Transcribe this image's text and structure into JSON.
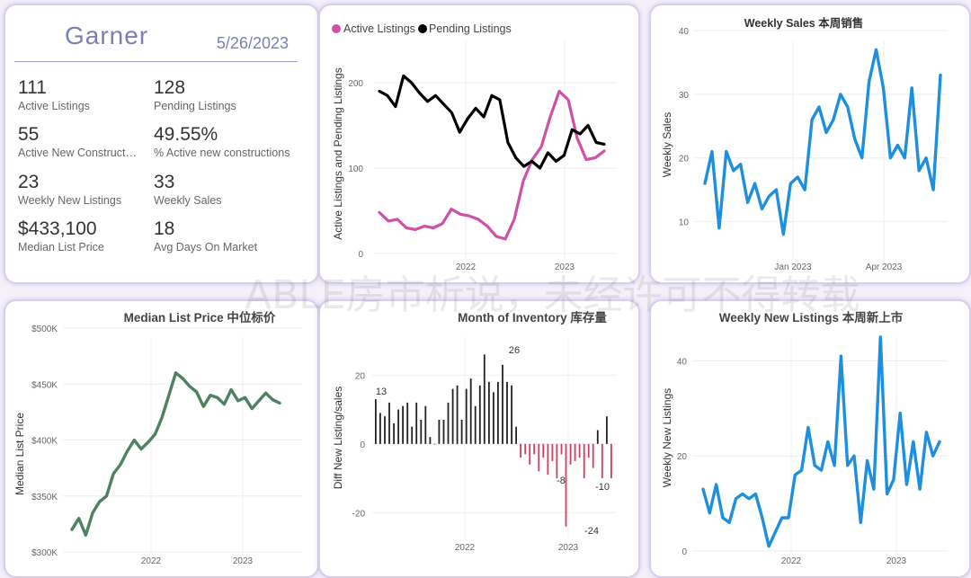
{
  "kpi_card": {
    "city": "Garner",
    "date": "5/26/2023",
    "items": [
      {
        "value": "111",
        "label": "Active Listings"
      },
      {
        "value": "128",
        "label": "Pending Listings"
      },
      {
        "value": "55",
        "label": "Active New Constructi..."
      },
      {
        "value": "49.55%",
        "label": "% Active new constructions"
      },
      {
        "value": "23",
        "label": "Weekly New Listings"
      },
      {
        "value": "33",
        "label": "Weekly Sales"
      },
      {
        "value": "$433,100",
        "label": "Median List Price"
      },
      {
        "value": "18",
        "label": "Avg Days On Market"
      }
    ]
  },
  "watermark": "ABLE房市析说，未经许可不得转载",
  "chart_data": [
    {
      "id": "listings",
      "type": "line",
      "title": "",
      "ylabel": "Active Listings and Pending Listings",
      "xlabel": "",
      "ylim": [
        0,
        240
      ],
      "yticks": [
        0,
        100,
        200
      ],
      "x_ticks": [
        "2022",
        "2023"
      ],
      "legend_position": "top-left",
      "colors": {
        "Active Listings": "#d04fa7",
        "Pending Listings": "#000000"
      },
      "series": [
        {
          "name": "Active Listings",
          "values": [
            48,
            38,
            40,
            30,
            28,
            32,
            30,
            35,
            52,
            46,
            44,
            40,
            32,
            20,
            17,
            40,
            85,
            110,
            125,
            160,
            190,
            180,
            135,
            110,
            112,
            120
          ]
        },
        {
          "name": "Pending Listings",
          "values": [
            190,
            185,
            172,
            208,
            200,
            188,
            178,
            185,
            175,
            165,
            142,
            158,
            170,
            160,
            185,
            180,
            130,
            112,
            102,
            108,
            100,
            118,
            108,
            115,
            145,
            140,
            150,
            130,
            128
          ]
        }
      ]
    },
    {
      "id": "weekly_sales",
      "type": "line",
      "title": "Weekly Sales 本周销售",
      "ylabel": "Weekly Sales",
      "xlabel": "",
      "ylim": [
        5,
        40
      ],
      "yticks": [
        10,
        20,
        30,
        40
      ],
      "x_ticks": [
        "Jan 2023",
        "Apr 2023"
      ],
      "colors": {
        "line": "#1e8fdf"
      },
      "series": [
        {
          "name": "",
          "values": [
            16,
            21,
            9,
            21,
            18,
            19,
            13,
            16,
            12,
            14,
            15,
            8,
            16,
            17,
            15,
            26,
            28,
            24,
            26,
            30,
            28,
            23,
            20,
            32,
            37,
            31,
            20,
            22,
            20,
            31,
            18,
            20,
            15,
            33
          ]
        }
      ]
    },
    {
      "id": "median_price",
      "type": "line",
      "title": "Median List Price  中位标价",
      "ylabel": "Median List Price",
      "xlabel": "",
      "ylim": [
        300000,
        500000
      ],
      "yticks": [
        "$300K",
        "$350K",
        "$400K",
        "$450K",
        "$500K"
      ],
      "x_ticks": [
        "2022",
        "2023"
      ],
      "colors": {
        "line": "#4e8062"
      },
      "series": [
        {
          "name": "",
          "values": [
            320000,
            330000,
            315000,
            335000,
            345000,
            350000,
            370000,
            378000,
            390000,
            400000,
            392000,
            398000,
            405000,
            420000,
            440000,
            460000,
            455000,
            448000,
            443000,
            430000,
            440000,
            438000,
            432000,
            445000,
            435000,
            438000,
            428000,
            435000,
            442000,
            436000,
            433000
          ]
        }
      ]
    },
    {
      "id": "inventory",
      "type": "bar",
      "title": "Month of Inventory 库存量",
      "ylabel": "Diff New Listing/sales",
      "xlabel": "",
      "ylim": [
        -28,
        30
      ],
      "yticks": [
        -20,
        0,
        20
      ],
      "x_ticks": [
        "2022",
        "2023"
      ],
      "annotations": [
        "13",
        "26",
        "-8",
        "-10",
        "-24"
      ],
      "colors": {
        "positive": "#222222",
        "negative": "#cf3f5c"
      },
      "values": [
        13,
        9,
        8,
        12,
        6,
        10,
        11,
        12,
        5,
        12,
        7,
        11,
        2,
        0,
        7,
        7,
        12,
        16,
        17,
        7,
        16,
        19,
        11,
        17,
        26,
        18,
        15,
        18,
        23,
        18,
        17,
        5,
        -4,
        -3,
        -6,
        -3,
        -8,
        -4,
        -9,
        -5,
        -10,
        -3,
        -24,
        -6,
        -5,
        -4,
        -10,
        -4,
        -7,
        4,
        -10,
        8,
        -10
      ]
    },
    {
      "id": "new_listings",
      "type": "line",
      "title": "Weekly New Listings  本周新上市",
      "ylabel": "Weekly New Listings",
      "xlabel": "",
      "ylim": [
        0,
        45
      ],
      "yticks": [
        0,
        20,
        40
      ],
      "x_ticks": [
        "2022",
        "2023"
      ],
      "colors": {
        "line": "#1e8fdf"
      },
      "series": [
        {
          "name": "",
          "values": [
            13,
            8,
            14,
            7,
            6,
            11,
            12,
            11,
            12,
            7,
            1,
            4,
            7,
            7,
            16,
            17,
            26,
            18,
            17,
            23,
            18,
            41,
            18,
            20,
            6,
            19,
            13,
            45,
            12,
            15,
            29,
            14,
            23,
            13,
            25,
            20,
            23
          ]
        }
      ]
    }
  ]
}
